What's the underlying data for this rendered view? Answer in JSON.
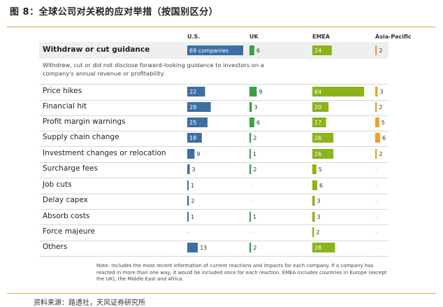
{
  "figure_title": "图 8：全球公司对关税的应对举措（按国别区分）",
  "source": "资料来源：路透社，天风证券研究所",
  "note": "Note: Includes the most recent information of current reactions and impacts for each company. If a company has reacted in more than one way, it would be included once for each reaction. EMEA includes countries in Europe (except the UK), the Middle East and Africa.",
  "chart_data": {
    "type": "bar",
    "layout": "table-grid",
    "columns": [
      {
        "name": "U.S.",
        "color": "#3d6ea5"
      },
      {
        "name": "UK",
        "color": "#3aa244"
      },
      {
        "name": "EMEA",
        "color": "#8cb319"
      },
      {
        "name": "Asia-Pacific",
        "color": "#f0a028"
      }
    ],
    "missing_marker": "–",
    "rows": [
      {
        "label": "Withdraw or cut guidance",
        "values": [
          69,
          6,
          24,
          2
        ],
        "first_value_suffix": " companies",
        "description": "Withdrew, cut or did not disclose forward-looking guidance to investors on a company's annual revenue or profitability.",
        "highlight": true
      },
      {
        "label": "Price hikes",
        "values": [
          22,
          9,
          64,
          3
        ]
      },
      {
        "label": "Financial hit",
        "values": [
          29,
          3,
          20,
          2
        ]
      },
      {
        "label": "Profit margin warnings",
        "values": [
          25,
          6,
          17,
          5
        ]
      },
      {
        "label": "Supply chain change",
        "values": [
          18,
          2,
          26,
          6
        ]
      },
      {
        "label": "Investment changes or relocation",
        "values": [
          9,
          1,
          26,
          2
        ]
      },
      {
        "label": "Surcharge fees",
        "values": [
          3,
          2,
          5,
          null
        ]
      },
      {
        "label": "Job cuts",
        "values": [
          1,
          null,
          6,
          null
        ]
      },
      {
        "label": "Delay capex",
        "values": [
          2,
          null,
          3,
          null
        ]
      },
      {
        "label": "Absorb costs",
        "values": [
          1,
          1,
          3,
          null
        ]
      },
      {
        "label": "Force majeure",
        "values": [
          null,
          null,
          2,
          null
        ]
      },
      {
        "label": "Others",
        "values": [
          13,
          2,
          28,
          null
        ]
      }
    ]
  }
}
